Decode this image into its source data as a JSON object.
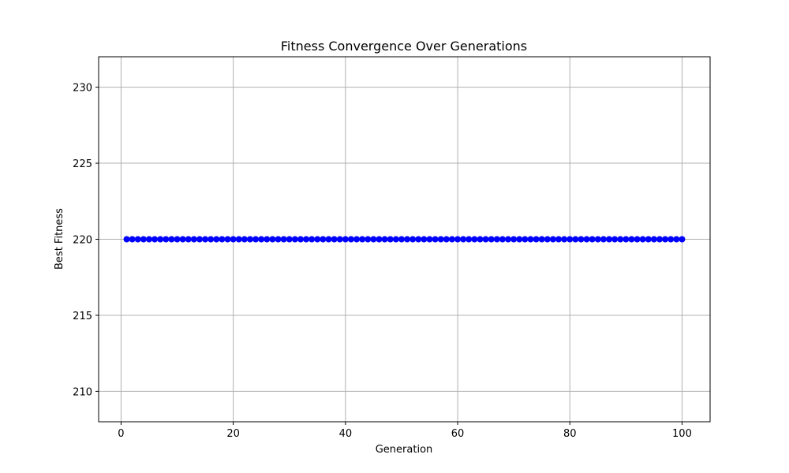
{
  "chart_data": {
    "type": "line",
    "title": "Fitness Convergence Over Generations",
    "xlabel": "Generation",
    "ylabel": "Best Fitness",
    "xlim": [
      -4,
      105
    ],
    "ylim": [
      208,
      232
    ],
    "x_ticks": [
      0,
      20,
      40,
      60,
      80,
      100
    ],
    "y_ticks": [
      210,
      215,
      220,
      225,
      230
    ],
    "grid": true,
    "legend": "none",
    "marker": "circle",
    "series": [
      {
        "color": "#0000ff",
        "x_start": 1,
        "x_end": 100,
        "x_step": 1,
        "y_constant": 220
      }
    ]
  }
}
